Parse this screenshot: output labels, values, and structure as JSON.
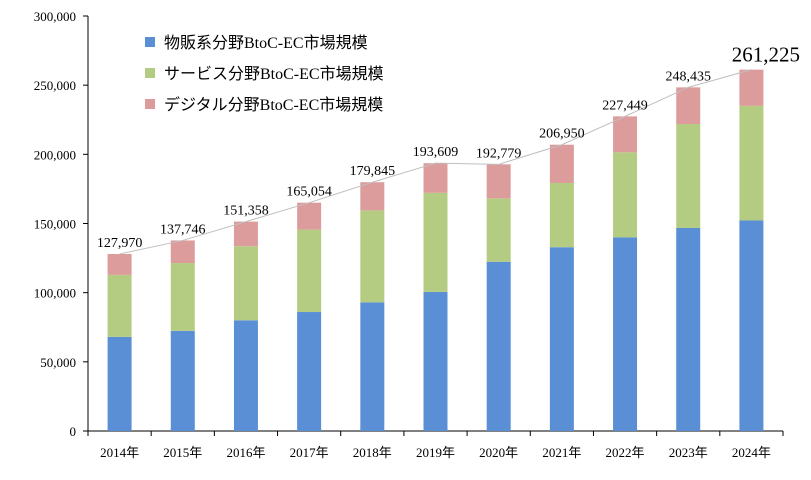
{
  "chart_data": {
    "type": "bar",
    "stacked": true,
    "categories": [
      "2014年",
      "2015年",
      "2016年",
      "2017年",
      "2018年",
      "2019年",
      "2020年",
      "2021年",
      "2022年",
      "2023年",
      "2024年"
    ],
    "series": [
      {
        "name": "物販系分野BtoC-EC市場規模",
        "color": "#5a8fd6",
        "values": [
          68043,
          72398,
          80043,
          86008,
          92992,
          100515,
          122333,
          132865,
          139997,
          146760,
          152194
        ]
      },
      {
        "name": "サービス分野BtoC-EC市場規模",
        "color": "#b4cc82",
        "values": [
          44816,
          49014,
          53532,
          59568,
          66471,
          71672,
          45832,
          46424,
          61477,
          75169,
          82857
        ]
      },
      {
        "name": "デジタル分野BtoC-EC市場規模",
        "color": "#dc9c9c",
        "values": [
          15111,
          16334,
          17783,
          19478,
          20382,
          21422,
          24614,
          27661,
          25975,
          26506,
          26174
        ]
      }
    ],
    "totals": [
      127970,
      137746,
      151358,
      165054,
      179845,
      193609,
      192779,
      206950,
      227449,
      248435,
      261225
    ],
    "total_labels": [
      "127,970",
      "137,746",
      "151,358",
      "165,054",
      "179,845",
      "193,609",
      "192,779",
      "206,950",
      "227,449",
      "248,435",
      "261,225"
    ],
    "y_ticks": [
      0,
      50000,
      100000,
      150000,
      200000,
      250000,
      300000
    ],
    "y_tick_labels": [
      "0",
      "50,000",
      "100,000",
      "150,000",
      "200,000",
      "250,000",
      "300,000"
    ],
    "ylim": [
      0,
      300000
    ],
    "grid": false,
    "legend_position": "top-left",
    "trend_line_color": "#bfbfbf"
  }
}
